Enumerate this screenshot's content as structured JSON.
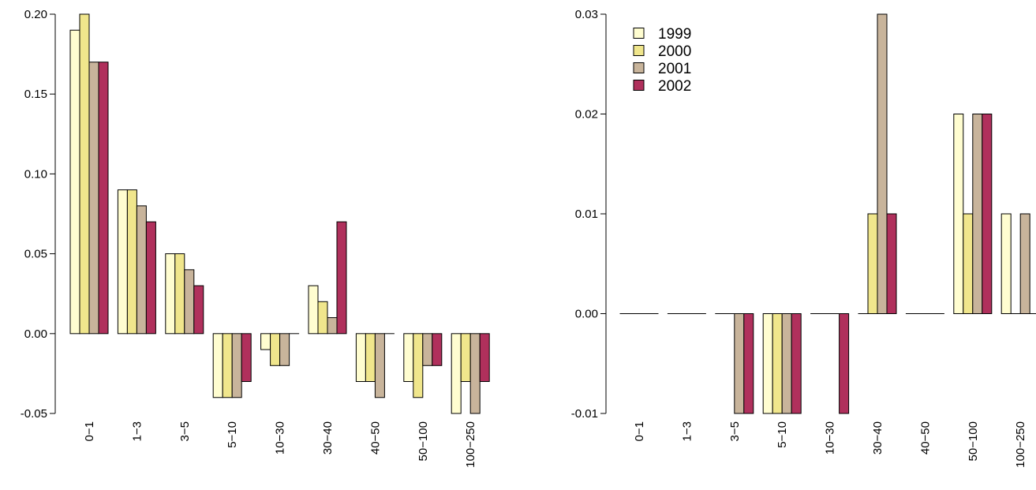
{
  "chart_data": [
    {
      "type": "bar",
      "categories": [
        "0−1",
        "1−3",
        "3−5",
        "5−10",
        "10−30",
        "30−40",
        "40−50",
        "50−100",
        "100−250"
      ],
      "ylim": [
        -0.05,
        0.2
      ],
      "yticks": [
        "-0.05",
        "0.00",
        "0.05",
        "0.10",
        "0.15",
        "0.20"
      ],
      "series": [
        {
          "name": "1999",
          "values": [
            0.19,
            0.09,
            0.05,
            -0.04,
            -0.01,
            0.03,
            -0.03,
            -0.03,
            -0.05
          ]
        },
        {
          "name": "2000",
          "values": [
            0.2,
            0.09,
            0.05,
            -0.04,
            -0.02,
            0.02,
            -0.03,
            -0.04,
            -0.03
          ]
        },
        {
          "name": "2001",
          "values": [
            0.17,
            0.08,
            0.04,
            -0.04,
            -0.02,
            0.01,
            -0.04,
            -0.02,
            -0.05
          ]
        },
        {
          "name": "2002",
          "values": [
            0.17,
            0.07,
            0.03,
            -0.03,
            0.0,
            0.07,
            0.0,
            -0.02,
            -0.03
          ]
        }
      ],
      "legend": false,
      "grid": false
    },
    {
      "type": "bar",
      "categories": [
        "0−1",
        "1−3",
        "3−5",
        "5−10",
        "10−30",
        "30−40",
        "40−50",
        "50−100",
        "100−250"
      ],
      "ylim": [
        -0.01,
        0.03
      ],
      "yticks": [
        "-0.01",
        "0.00",
        "0.01",
        "0.02",
        "0.03"
      ],
      "series": [
        {
          "name": "1999",
          "values": [
            0.0,
            0.0,
            0.0,
            -0.01,
            0.0,
            0.0,
            0.0,
            0.02,
            0.01
          ]
        },
        {
          "name": "2000",
          "values": [
            0.0,
            0.0,
            0.0,
            -0.01,
            0.0,
            0.01,
            0.0,
            0.01,
            0.0
          ]
        },
        {
          "name": "2001",
          "values": [
            0.0,
            0.0,
            -0.01,
            -0.01,
            0.0,
            0.03,
            0.0,
            0.02,
            0.01
          ]
        },
        {
          "name": "2002",
          "values": [
            0.0,
            0.0,
            -0.01,
            -0.01,
            -0.01,
            0.01,
            0.0,
            0.02,
            0.0
          ]
        }
      ],
      "legend": true,
      "legend_position": "top-left",
      "grid": false
    }
  ],
  "colors": {
    "1999": "#FFFDD0",
    "2000": "#F0E68C",
    "2001": "#C8B49B",
    "2002": "#B0305C"
  }
}
